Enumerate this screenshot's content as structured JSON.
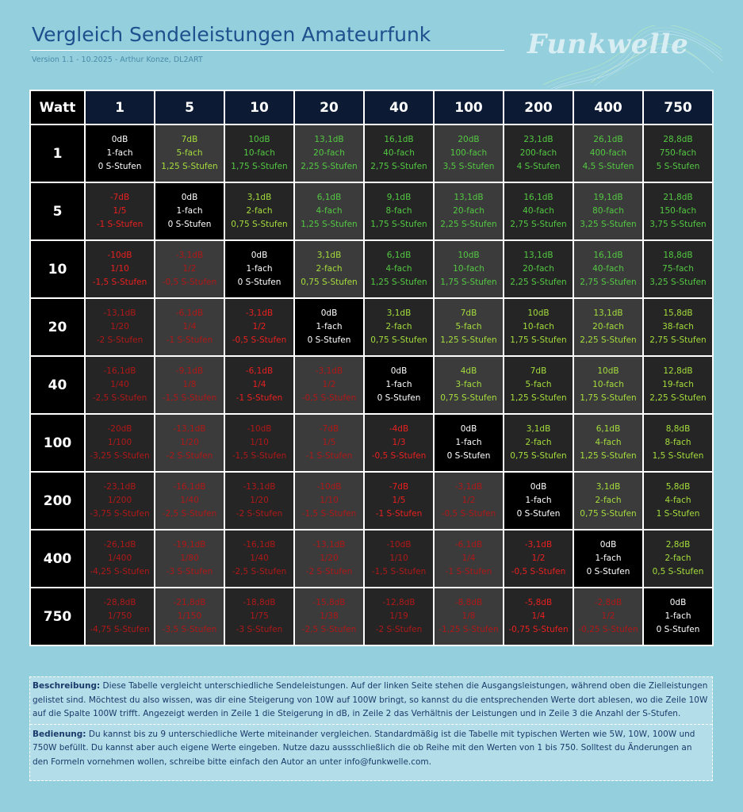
{
  "header": {
    "title": "Vergleich Sendeleistungen Amateurfunk",
    "subtitle": "Version 1.1 - 10.2025 - Arthur Konze, DL2ART",
    "logo_text": "Funkwelle"
  },
  "table": {
    "corner": "Watt",
    "columns": [
      "1",
      "5",
      "10",
      "20",
      "40",
      "100",
      "200",
      "400",
      "750"
    ],
    "rows": [
      {
        "label": "1",
        "cells": [
          [
            "0dB",
            "1-fach",
            "0 S-Stufen"
          ],
          [
            "7dB",
            "5-fach",
            "1,25 S-Stufen"
          ],
          [
            "10dB",
            "10-fach",
            "1,75 S-Stufen"
          ],
          [
            "13,1dB",
            "20-fach",
            "2,25 S-Stufen"
          ],
          [
            "16,1dB",
            "40-fach",
            "2,75 S-Stufen"
          ],
          [
            "20dB",
            "100-fach",
            "3,5 S-Stufen"
          ],
          [
            "23,1dB",
            "200-fach",
            "4 S-Stufen"
          ],
          [
            "26,1dB",
            "400-fach",
            "4,5 S-Stufen"
          ],
          [
            "28,8dB",
            "750-fach",
            "5 S-Stufen"
          ]
        ]
      },
      {
        "label": "5",
        "cells": [
          [
            "-7dB",
            "1/5",
            "-1 S-Stufen"
          ],
          [
            "0dB",
            "1-fach",
            "0 S-Stufen"
          ],
          [
            "3,1dB",
            "2-fach",
            "0,75 S-Stufen"
          ],
          [
            "6,1dB",
            "4-fach",
            "1,25 S-Stufen"
          ],
          [
            "9,1dB",
            "8-fach",
            "1,75 S-Stufen"
          ],
          [
            "13,1dB",
            "20-fach",
            "2,25 S-Stufen"
          ],
          [
            "16,1dB",
            "40-fach",
            "2,75 S-Stufen"
          ],
          [
            "19,1dB",
            "80-fach",
            "3,25 S-Stufen"
          ],
          [
            "21,8dB",
            "150-fach",
            "3,75 S-Stufen"
          ]
        ]
      },
      {
        "label": "10",
        "cells": [
          [
            "-10dB",
            "1/10",
            "-1,5 S-Stufen"
          ],
          [
            "-3,1dB",
            "1/2",
            "-0,5 S-Stufen"
          ],
          [
            "0dB",
            "1-fach",
            "0 S-Stufen"
          ],
          [
            "3,1dB",
            "2-fach",
            "0,75 S-Stufen"
          ],
          [
            "6,1dB",
            "4-fach",
            "1,25 S-Stufen"
          ],
          [
            "10dB",
            "10-fach",
            "1,75 S-Stufen"
          ],
          [
            "13,1dB",
            "20-fach",
            "2,25 S-Stufen"
          ],
          [
            "16,1dB",
            "40-fach",
            "2,75 S-Stufen"
          ],
          [
            "18,8dB",
            "75-fach",
            "3,25 S-Stufen"
          ]
        ]
      },
      {
        "label": "20",
        "cells": [
          [
            "-13,1dB",
            "1/20",
            "-2 S-Stufen"
          ],
          [
            "-6,1dB",
            "1/4",
            "-1 S-Stufen"
          ],
          [
            "-3,1dB",
            "1/2",
            "-0,5 S-Stufen"
          ],
          [
            "0dB",
            "1-fach",
            "0 S-Stufen"
          ],
          [
            "3,1dB",
            "2-fach",
            "0,75 S-Stufen"
          ],
          [
            "7dB",
            "5-fach",
            "1,25 S-Stufen"
          ],
          [
            "10dB",
            "10-fach",
            "1,75 S-Stufen"
          ],
          [
            "13,1dB",
            "20-fach",
            "2,25 S-Stufen"
          ],
          [
            "15,8dB",
            "38-fach",
            "2,75 S-Stufen"
          ]
        ]
      },
      {
        "label": "40",
        "cells": [
          [
            "-16,1dB",
            "1/40",
            "-2,5 S-Stufen"
          ],
          [
            "-9,1dB",
            "1/8",
            "-1,5 S-Stufen"
          ],
          [
            "-6,1dB",
            "1/4",
            "-1 S-Stufen"
          ],
          [
            "-3,1dB",
            "1/2",
            "-0,5 S-Stufen"
          ],
          [
            "0dB",
            "1-fach",
            "0 S-Stufen"
          ],
          [
            "4dB",
            "3-fach",
            "0,75 S-Stufen"
          ],
          [
            "7dB",
            "5-fach",
            "1,25 S-Stufen"
          ],
          [
            "10dB",
            "10-fach",
            "1,75 S-Stufen"
          ],
          [
            "12,8dB",
            "19-fach",
            "2,25 S-Stufen"
          ]
        ]
      },
      {
        "label": "100",
        "cells": [
          [
            "-20dB",
            "1/100",
            "-3,25 S-Stufen"
          ],
          [
            "-13,1dB",
            "1/20",
            "-2 S-Stufen"
          ],
          [
            "-10dB",
            "1/10",
            "-1,5 S-Stufen"
          ],
          [
            "-7dB",
            "1/5",
            "-1 S-Stufen"
          ],
          [
            "-4dB",
            "1/3",
            "-0,5 S-Stufen"
          ],
          [
            "0dB",
            "1-fach",
            "0 S-Stufen"
          ],
          [
            "3,1dB",
            "2-fach",
            "0,75 S-Stufen"
          ],
          [
            "6,1dB",
            "4-fach",
            "1,25 S-Stufen"
          ],
          [
            "8,8dB",
            "8-fach",
            "1,5 S-Stufen"
          ]
        ]
      },
      {
        "label": "200",
        "cells": [
          [
            "-23,1dB",
            "1/200",
            "-3,75 S-Stufen"
          ],
          [
            "-16,1dB",
            "1/40",
            "-2,5 S-Stufen"
          ],
          [
            "-13,1dB",
            "1/20",
            "-2 S-Stufen"
          ],
          [
            "-10dB",
            "1/10",
            "-1,5 S-Stufen"
          ],
          [
            "-7dB",
            "1/5",
            "-1 S-Stufen"
          ],
          [
            "-3,1dB",
            "1/2",
            "-0,5 S-Stufen"
          ],
          [
            "0dB",
            "1-fach",
            "0 S-Stufen"
          ],
          [
            "3,1dB",
            "2-fach",
            "0,75 S-Stufen"
          ],
          [
            "5,8dB",
            "4-fach",
            "1 S-Stufen"
          ]
        ]
      },
      {
        "label": "400",
        "cells": [
          [
            "-26,1dB",
            "1/400",
            "-4,25 S-Stufen"
          ],
          [
            "-19,1dB",
            "1/80",
            "-3 S-Stufen"
          ],
          [
            "-16,1dB",
            "1/40",
            "-2,5 S-Stufen"
          ],
          [
            "-13,1dB",
            "1/20",
            "-2 S-Stufen"
          ],
          [
            "-10dB",
            "1/10",
            "-1,5 S-Stufen"
          ],
          [
            "-6,1dB",
            "1/4",
            "-1 S-Stufen"
          ],
          [
            "-3,1dB",
            "1/2",
            "-0,5 S-Stufen"
          ],
          [
            "0dB",
            "1-fach",
            "0 S-Stufen"
          ],
          [
            "2,8dB",
            "2-fach",
            "0,5 S-Stufen"
          ]
        ]
      },
      {
        "label": "750",
        "cells": [
          [
            "-28,8dB",
            "1/750",
            "-4,75 S-Stufen"
          ],
          [
            "-21,8dB",
            "1/150",
            "-3,5 S-Stufen"
          ],
          [
            "-18,8dB",
            "1/75",
            "-3 S-Stufen"
          ],
          [
            "-15,8dB",
            "1/38",
            "-2,5 S-Stufen"
          ],
          [
            "-12,8dB",
            "1/19",
            "-2 S-Stufen"
          ],
          [
            "-8,8dB",
            "1/8",
            "-1,25 S-Stufen"
          ],
          [
            "-5,8dB",
            "1/4",
            "-0,75 S-Stufen"
          ],
          [
            "-2,8dB",
            "1/2",
            "-0,25 S-Stufen"
          ],
          [
            "0dB",
            "1-fach",
            "0 S-Stufen"
          ]
        ]
      }
    ]
  },
  "description": {
    "beschreibung_label": "Beschreibung:",
    "beschreibung_text": " Diese Tabelle vergleicht unterschiedliche Sendeleistungen. Auf der linken Seite stehen die Ausgangsleistungen, während oben die Zielleistungen gelistet sind. Möchtest du also wissen, was dir eine Steigerung von 10W auf 100W bringt, so kannst du die entsprechenden Werte dort ablesen, wo die Zeile 10W auf die Spalte 100W trifft. Angezeigt werden in Zeile 1 die Steigerung in dB, in Zeile 2 das Verhältnis der Leistungen und in Zeile 3 die Anzahl der S-Stufen.",
    "bedienung_label": "Bedienung:",
    "bedienung_text": " Du kannst bis zu 9 unterschiedliche Werte miteinander vergleichen. Standardmäßig ist die Tabelle mit typischen Werten wie 5W, 10W, 100W und 750W befüllt. Du kannst aber auch eigene Werte eingeben. Nutze dazu aussschließlich die ob Reihe mit den Werten von 1 bis 750. Solltest du Änderungen an den Formeln vornehmen wollen, schreibe bitte einfach den Autor an unter info@funkwelle.com."
  },
  "colors": {
    "background": "#93cfdd",
    "title": "#1f4f8d",
    "header_cell": "#0c1b33",
    "positive": "#53c842",
    "negative": "#e82020",
    "diagonal": "#000000"
  }
}
